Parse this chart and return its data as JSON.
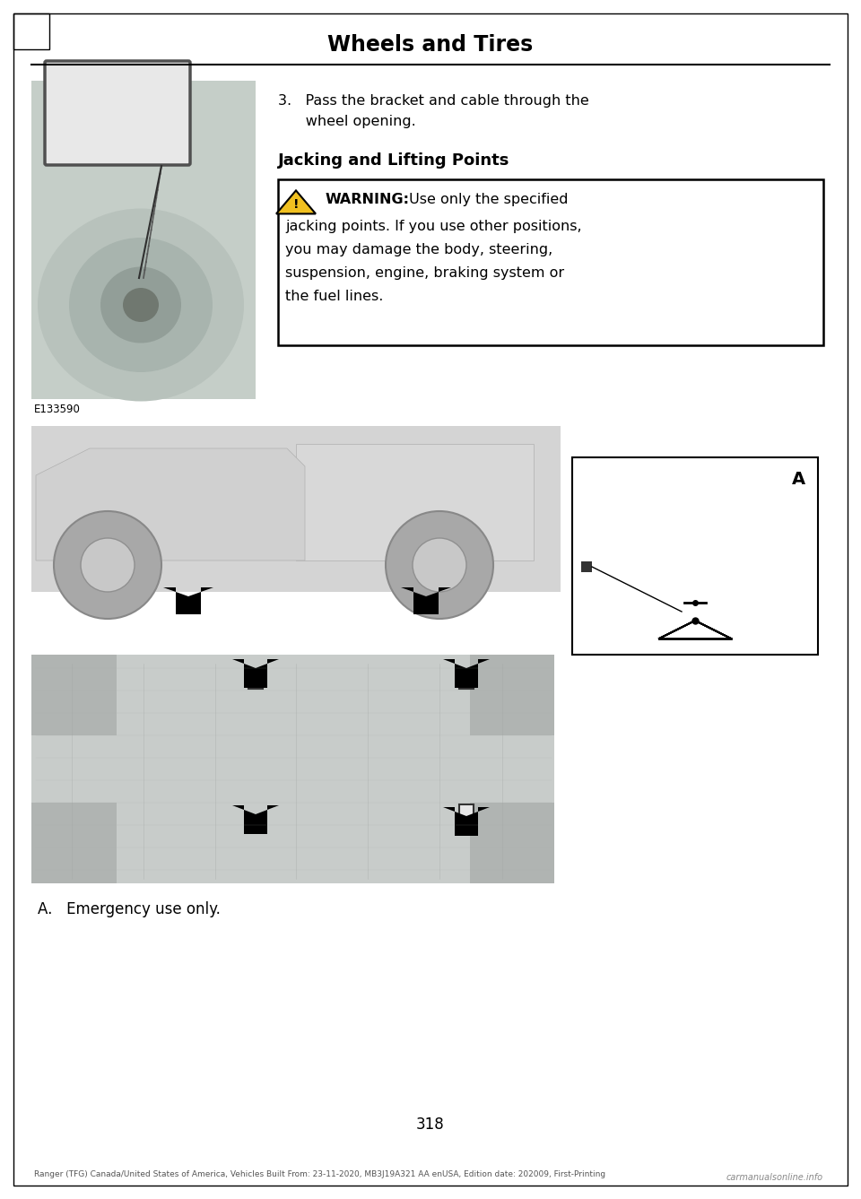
{
  "page_title": "Wheels and Tires",
  "page_number": "318",
  "bg": "#ffffff",
  "title_fontsize": 17,
  "header_line_color": "#000000",
  "step3_line1": "3.   Pass the bracket and cable through the",
  "step3_line2": "      wheel opening.",
  "section_title": "Jacking and Lifting Points",
  "warning_line1": " WARNING:  Use only the specified",
  "warning_line2": "jacking points. If you use other positions,",
  "warning_line3": "you may damage the body, steering,",
  "warning_line4": "suspension, engine, braking system or",
  "warning_line5": "the fuel lines.",
  "image_label": "E133590",
  "callout_a": "A",
  "callout_a_label": "A.   Emergency use only.",
  "footer": "Ranger (TFG) Canada/United States of America, Vehicles Built From: 23-11-2020, MB3J19A321 AA enUSA, Edition date: 202009, First-Printing",
  "watermark": "carmanualsonline.info",
  "tire_photo_color": "#c5cec8",
  "truck_side_color": "#d4d4d4",
  "truck_under_color": "#c8ccca",
  "inset_box_color": "#e8e8e8",
  "warning_box_border": "#000000",
  "triangle_fill": "#f0c020",
  "text_color": "#000000",
  "border_color": "#000000"
}
